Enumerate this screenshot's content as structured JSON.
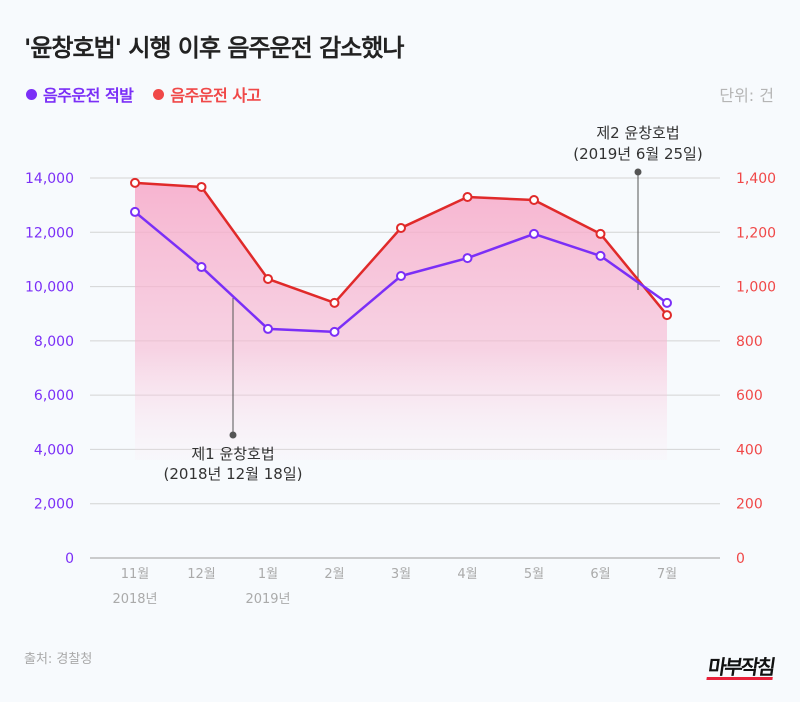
{
  "title": "'윤창호법' 시행 이후 음주운전 감소했나",
  "unit": "단위: 건",
  "source": "출처: 경찰청",
  "logo": "마부작침",
  "colors": {
    "enforcement": "#7b2ff7",
    "accidents": "#e8342a",
    "area": "#f7a8c8",
    "background": "#f7fafd"
  },
  "chart_data": {
    "type": "line",
    "categories": [
      "11월",
      "12월",
      "1월",
      "2월",
      "3월",
      "4월",
      "5월",
      "6월",
      "7월"
    ],
    "year_labels": [
      {
        "index": 0,
        "label": "2018년"
      },
      {
        "index": 2,
        "label": "2019년"
      }
    ],
    "series": [
      {
        "name": "음주운전 적발",
        "axis": "left",
        "values": [
          12750,
          10720,
          8440,
          8330,
          10390,
          11050,
          11940,
          11130,
          9400
        ]
      },
      {
        "name": "음주운전 사고",
        "axis": "right",
        "values": [
          1382,
          1367,
          1028,
          940,
          1216,
          1330,
          1319,
          1194,
          895
        ]
      }
    ],
    "y_left": {
      "ylim": [
        0,
        14000
      ],
      "ticks": [
        "0",
        "2,000",
        "4,000",
        "6,000",
        "8,000",
        "10,000",
        "12,000",
        "14,000"
      ]
    },
    "y_right": {
      "ylim": [
        0,
        1400
      ],
      "ticks": [
        "0",
        "200",
        "400",
        "600",
        "800",
        "1,000",
        "1,200",
        "1,400"
      ]
    },
    "grid": true,
    "legend": "top-left",
    "annotations": [
      {
        "at": "between 12월 and 1월",
        "lines": [
          "제1 윤창호법",
          "(2018년 12월 18일)"
        ]
      },
      {
        "at": "between 6월 and 7월",
        "lines": [
          "제2 윤창호법",
          "(2019년 6월 25일)"
        ]
      }
    ]
  }
}
